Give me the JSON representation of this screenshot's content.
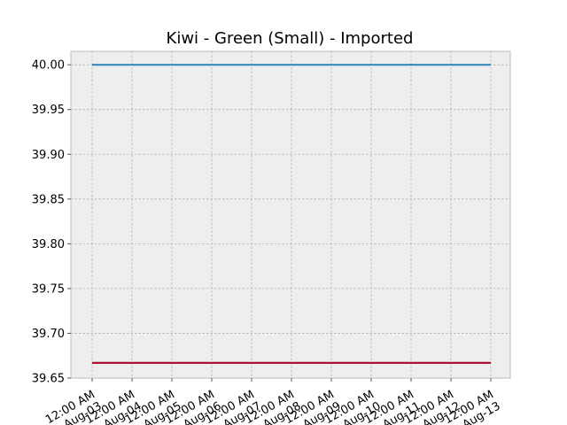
{
  "chart_data": {
    "type": "line",
    "title": "Kiwi - Green (Small) - Imported",
    "xlabel": "",
    "ylabel": "",
    "x": [
      "Aug-03",
      "Aug-04",
      "Aug-05",
      "Aug-06",
      "Aug-07",
      "Aug-08",
      "Aug-09",
      "Aug-10",
      "Aug-11",
      "Aug-12",
      "Aug-13"
    ],
    "x_tick_labels": [
      "12:00 AM\nAug-03",
      "12:00 AM\nAug-04",
      "12:00 AM\nAug-05",
      "12:00 AM\nAug-06",
      "12:00 AM\nAug-07",
      "12:00 AM\nAug-08",
      "12:00 AM\nAug-09",
      "12:00 AM\nAug-10",
      "12:00 AM\nAug-11",
      "12:00 AM\nAug-12",
      "12:00 AM\nAug-13"
    ],
    "series": [
      {
        "values": [
          40.0,
          40.0,
          40.0,
          40.0,
          40.0,
          40.0,
          40.0,
          40.0,
          40.0,
          40.0,
          40.0
        ],
        "color": "#348abd"
      },
      {
        "values": [
          39.667,
          39.667,
          39.667,
          39.667,
          39.667,
          39.667,
          39.667,
          39.667,
          39.667,
          39.667,
          39.667
        ],
        "color": "#a60628"
      }
    ],
    "ylim": [
      39.65,
      40.015
    ],
    "y_ticks": [
      "39.65",
      "39.70",
      "39.75",
      "39.80",
      "39.85",
      "39.90",
      "39.95",
      "40.00"
    ],
    "grid": true,
    "background": "#eeeeee",
    "grid_color": "#b2b2b2"
  }
}
